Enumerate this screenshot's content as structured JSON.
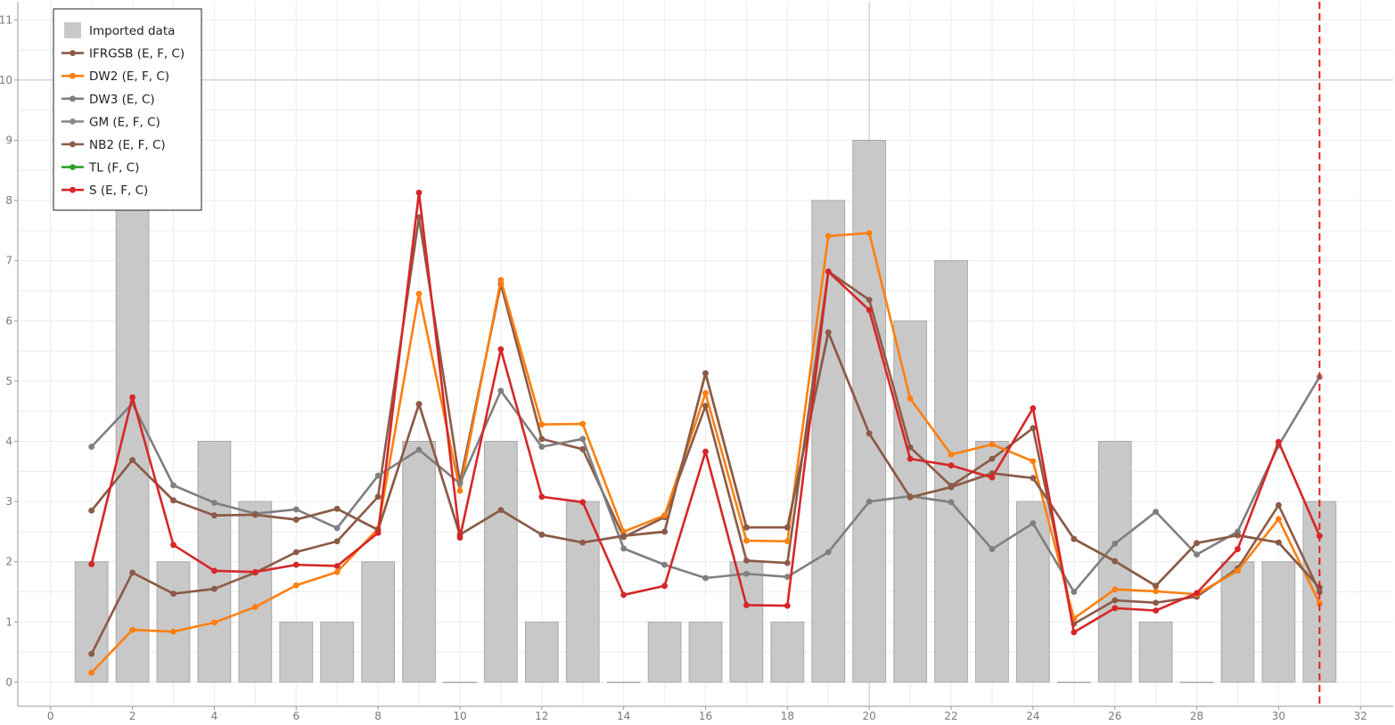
{
  "chart_data": {
    "type": "bar",
    "x_range": [
      -0.8,
      32.8
    ],
    "y_range": [
      -0.4,
      11.3
    ],
    "x_ticks": [
      0,
      2,
      4,
      6,
      8,
      10,
      12,
      14,
      16,
      18,
      20,
      22,
      24,
      26,
      28,
      30,
      32
    ],
    "y_ticks": [
      0,
      1,
      2,
      3,
      4,
      5,
      6,
      7,
      8,
      9,
      10,
      11
    ],
    "grid": true,
    "legend_position": "top-left",
    "marker_x": 31,
    "marker_color": "#e02020",
    "bars": {
      "name": "Imported data",
      "color": "#c8c8c8",
      "x": [
        1,
        2,
        3,
        4,
        5,
        6,
        7,
        8,
        9,
        10,
        11,
        12,
        13,
        14,
        15,
        16,
        17,
        18,
        19,
        20,
        21,
        22,
        23,
        24,
        25,
        26,
        27,
        28,
        29,
        30,
        31
      ],
      "values": [
        2,
        8,
        2,
        4,
        3,
        1,
        1,
        2,
        4,
        0,
        4,
        1,
        3,
        0,
        1,
        1,
        2,
        1,
        8,
        9,
        6,
        7,
        4,
        3,
        0,
        4,
        1,
        0,
        2,
        2,
        3
      ]
    },
    "series": [
      {
        "name": "IFRGSB (E, F, C)",
        "color": "#8c5a46",
        "x": [
          1,
          2,
          3,
          4,
          5,
          6,
          7,
          8,
          9,
          10,
          11,
          12,
          13,
          14,
          15,
          16,
          17,
          18,
          19,
          20,
          21,
          22,
          23,
          24,
          25,
          26,
          27,
          28,
          29,
          30,
          31
        ],
        "values": [
          0.47,
          1.82,
          1.47,
          1.55,
          1.82,
          2.16,
          2.34,
          3.08,
          7.72,
          3.31,
          6.61,
          4.04,
          3.87,
          2.41,
          2.74,
          4.59,
          2.02,
          1.98,
          6.82,
          6.35,
          3.9,
          3.26,
          3.71,
          4.22,
          0.97,
          1.36,
          1.32,
          1.42,
          1.89,
          2.94,
          1.5
        ]
      },
      {
        "name": "DW2 (E, F, C)",
        "color": "#ff7f0e",
        "x": [
          1,
          2,
          3,
          4,
          5,
          6,
          7,
          8,
          9,
          10,
          11,
          12,
          13,
          14,
          15,
          16,
          17,
          18,
          19,
          20,
          21,
          22,
          23,
          24,
          25,
          26,
          27,
          28,
          29,
          30,
          31
        ],
        "values": [
          0.16,
          0.87,
          0.84,
          0.99,
          1.25,
          1.61,
          1.83,
          2.55,
          6.45,
          3.18,
          6.68,
          4.28,
          4.29,
          2.5,
          2.77,
          4.8,
          2.35,
          2.34,
          7.41,
          7.46,
          4.71,
          3.78,
          3.95,
          3.67,
          1.06,
          1.54,
          1.51,
          1.46,
          1.85,
          2.71,
          1.31
        ]
      },
      {
        "name": "DW3 (E, C)",
        "color": "#7f7f7f",
        "x": [
          1,
          2,
          3,
          4,
          5,
          6,
          7,
          8,
          9,
          10,
          11,
          12,
          13,
          14,
          15,
          16,
          17,
          18,
          19,
          20,
          21,
          22,
          23,
          24,
          25,
          26,
          27,
          28,
          29,
          30,
          31
        ],
        "values": [
          3.91,
          4.63,
          3.27,
          2.98,
          2.8,
          2.87,
          2.56,
          3.43,
          3.86,
          3.3,
          4.84,
          3.91,
          4.04,
          2.22,
          1.95,
          1.73,
          1.8,
          1.75,
          2.16,
          3.0,
          3.09,
          2.99,
          2.21,
          2.64,
          1.5,
          2.3,
          2.83,
          2.12,
          2.5,
          3.93,
          5.07
        ]
      },
      {
        "name": "GM (E, F, C)",
        "color": "#8a8a8a",
        "x": [
          1,
          2,
          3,
          4,
          5,
          6,
          7,
          8,
          9,
          10,
          11,
          12,
          13,
          14,
          15,
          16,
          17,
          18,
          19,
          20,
          21,
          22,
          23,
          24,
          25,
          26,
          27,
          28,
          29,
          30,
          31
        ],
        "values": [
          2.85,
          3.69,
          3.02,
          2.77,
          2.78,
          2.7,
          2.88,
          2.53,
          4.62,
          2.45,
          2.86,
          2.45,
          2.32,
          2.43,
          2.5,
          5.13,
          2.57,
          2.57,
          5.81,
          4.13,
          3.07,
          3.24,
          3.47,
          3.39,
          2.38,
          2.01,
          1.6,
          2.31,
          2.44,
          2.32,
          1.57
        ]
      },
      {
        "name": "NB2 (E, F, C)",
        "color": "#8c5a46",
        "x": [
          1,
          2,
          3,
          4,
          5,
          6,
          7,
          8,
          9,
          10,
          11,
          12,
          13,
          14,
          15,
          16,
          17,
          18,
          19,
          20,
          21,
          22,
          23,
          24,
          25,
          26,
          27,
          28,
          29,
          30,
          31
        ],
        "values": [
          2.85,
          3.69,
          3.02,
          2.77,
          2.78,
          2.7,
          2.88,
          2.53,
          4.62,
          2.45,
          2.86,
          2.45,
          2.32,
          2.43,
          2.5,
          5.13,
          2.57,
          2.57,
          5.81,
          4.13,
          3.07,
          3.24,
          3.47,
          3.39,
          2.38,
          2.01,
          1.6,
          2.31,
          2.44,
          2.32,
          1.57
        ]
      },
      {
        "name": "TL (F, C)",
        "color": "#2ca02c",
        "x": [],
        "values": []
      },
      {
        "name": "S (E, F, C)",
        "color": "#d62728",
        "x": [
          1,
          2,
          3,
          4,
          5,
          6,
          7,
          8,
          9,
          10,
          11,
          12,
          13,
          14,
          15,
          16,
          17,
          18,
          19,
          20,
          21,
          22,
          23,
          24,
          25,
          26,
          27,
          28,
          29,
          30,
          31
        ],
        "values": [
          1.96,
          4.73,
          2.28,
          1.85,
          1.83,
          1.95,
          1.93,
          2.48,
          8.13,
          2.4,
          5.53,
          3.08,
          2.99,
          1.45,
          1.6,
          3.83,
          1.28,
          1.27,
          6.82,
          6.18,
          3.71,
          3.6,
          3.4,
          4.55,
          0.83,
          1.23,
          1.19,
          1.48,
          2.21,
          3.99,
          2.43
        ]
      }
    ]
  }
}
